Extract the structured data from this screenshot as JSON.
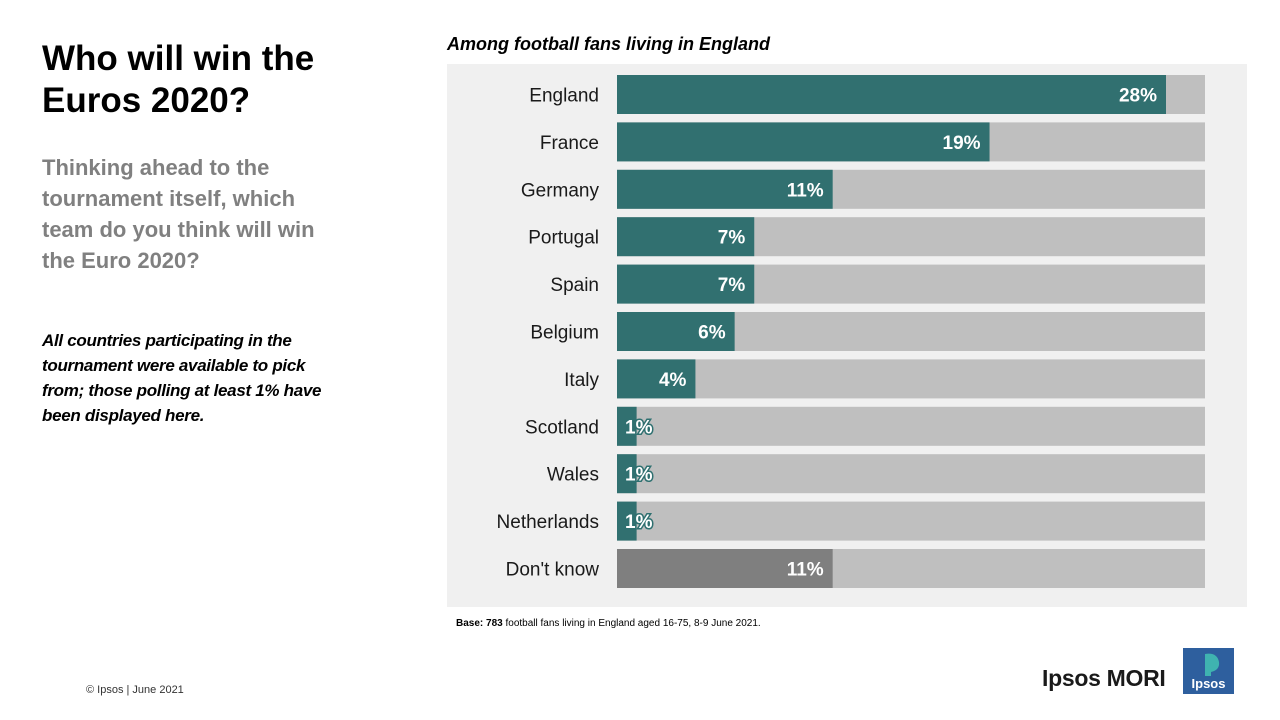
{
  "header": {
    "title": "Who will win the Euros 2020?",
    "subtitle": "Thinking ahead to the tournament itself, which team do you think will win the Euro 2020?",
    "note": "All countries participating in the tournament were available to pick from; those polling at least 1% have been displayed here."
  },
  "chart_heading": "Among football fans living in England",
  "footer": {
    "base_label": "Base:",
    "base_count": "783",
    "base_text": "football fans living in England aged 16-75, 8-9 June 2021.",
    "copyright": "© Ipsos | June 2021",
    "brand": "Ipsos MORI",
    "logo_text": "Ipsos"
  },
  "colors": {
    "bar": "#317070",
    "dont_know_bar": "#7f7f7f",
    "track": "#bfbfbf",
    "panel": "#f0f0f0",
    "logo": "#2e5f9e",
    "logo_accent": "#3fb3b0"
  },
  "chart_data": {
    "type": "bar",
    "orientation": "horizontal",
    "title": "Among football fans living in England",
    "categories": [
      "England",
      "France",
      "Germany",
      "Portugal",
      "Spain",
      "Belgium",
      "Italy",
      "Scotland",
      "Wales",
      "Netherlands",
      "Don't know"
    ],
    "values": [
      28,
      19,
      11,
      7,
      7,
      6,
      4,
      1,
      1,
      1,
      11
    ],
    "value_labels": [
      "28%",
      "19%",
      "11%",
      "7%",
      "7%",
      "6%",
      "4%",
      "1%",
      "1%",
      "1%",
      "11%"
    ],
    "unit": "%",
    "xlim": [
      0,
      30
    ],
    "grid": false,
    "legend": "none"
  }
}
